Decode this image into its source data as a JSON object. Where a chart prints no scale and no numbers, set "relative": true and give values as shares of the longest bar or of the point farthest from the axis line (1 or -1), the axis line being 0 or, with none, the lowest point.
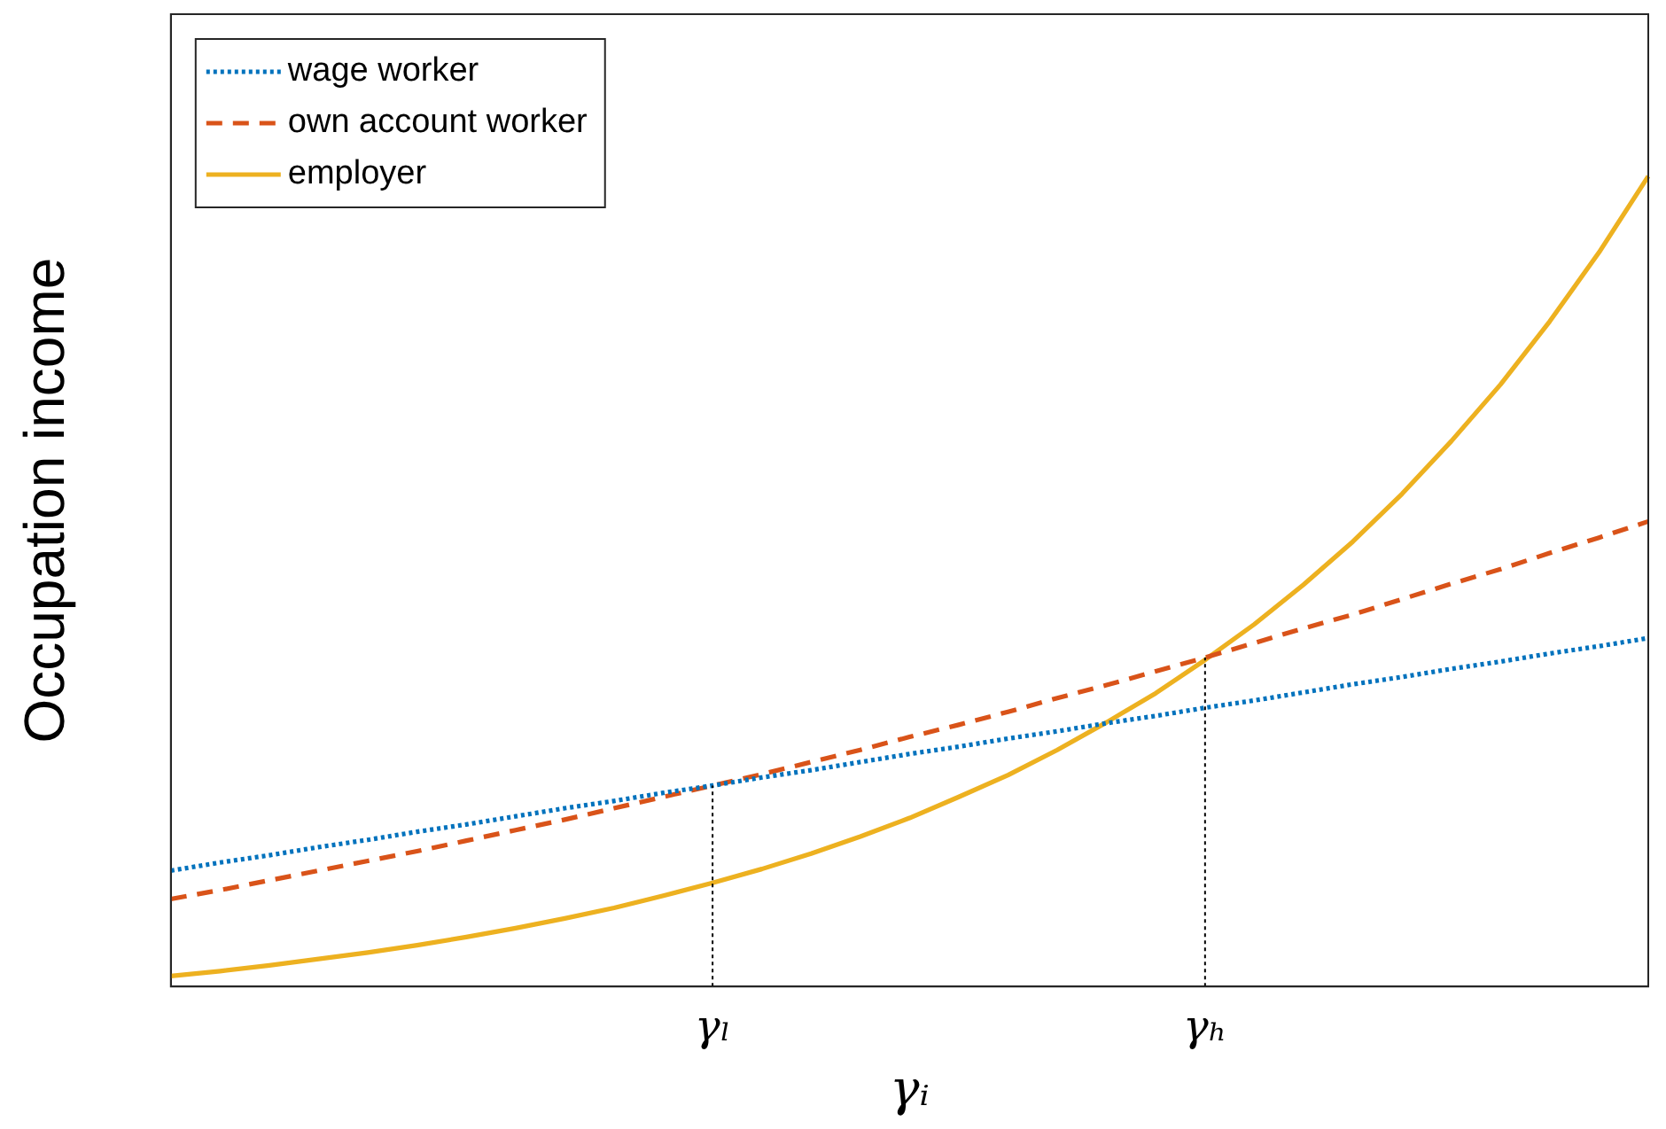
{
  "chart_data": {
    "type": "line",
    "relative": true,
    "xlabel": "γᵢ",
    "ylabel": "Occupation income",
    "legend": "top left",
    "grid": false,
    "marker": "none",
    "categories": [
      null,
      null,
      null,
      null,
      null,
      null,
      null,
      null,
      null,
      null,
      null,
      "γₗ",
      null,
      null,
      null,
      null,
      null,
      null,
      null,
      null,
      null,
      "γₕ",
      null,
      null,
      null,
      null,
      null,
      null,
      null,
      null,
      null
    ],
    "series": [
      {
        "name": "wage worker",
        "color": "#0072bd",
        "line_style": "dotted",
        "values": [
          0.143,
          0.153,
          0.162,
          0.172,
          0.181,
          0.191,
          0.2,
          0.21,
          0.22,
          0.229,
          0.239,
          0.248,
          0.258,
          0.267,
          0.277,
          0.287,
          0.296,
          0.306,
          0.315,
          0.325,
          0.334,
          0.344,
          0.353,
          0.363,
          0.373,
          0.382,
          0.392,
          0.401,
          0.411,
          0.42,
          0.43
        ]
      },
      {
        "name": "own account worker",
        "color": "#d95319",
        "line_style": "dashed",
        "values": [
          0.108,
          0.119,
          0.131,
          0.143,
          0.155,
          0.167,
          0.18,
          0.193,
          0.206,
          0.22,
          0.234,
          0.248,
          0.262,
          0.277,
          0.292,
          0.308,
          0.323,
          0.339,
          0.356,
          0.372,
          0.389,
          0.406,
          0.424,
          0.442,
          0.459,
          0.478,
          0.497,
          0.515,
          0.535,
          0.554,
          0.574
        ]
      },
      {
        "name": "employer",
        "color": "#edb120",
        "line_style": "solid",
        "values": [
          0.013,
          0.019,
          0.026,
          0.034,
          0.042,
          0.051,
          0.061,
          0.072,
          0.084,
          0.097,
          0.112,
          0.128,
          0.145,
          0.164,
          0.185,
          0.208,
          0.234,
          0.261,
          0.292,
          0.326,
          0.362,
          0.403,
          0.447,
          0.496,
          0.549,
          0.608,
          0.673,
          0.743,
          0.821,
          0.906,
          1.0
        ]
      }
    ],
    "ref_lines": [
      {
        "axis": "x",
        "value": "γₗ",
        "color": "#000000",
        "line_style": "dotted"
      },
      {
        "axis": "x",
        "value": "γₕ",
        "color": "#000000",
        "line_style": "dotted"
      }
    ]
  }
}
